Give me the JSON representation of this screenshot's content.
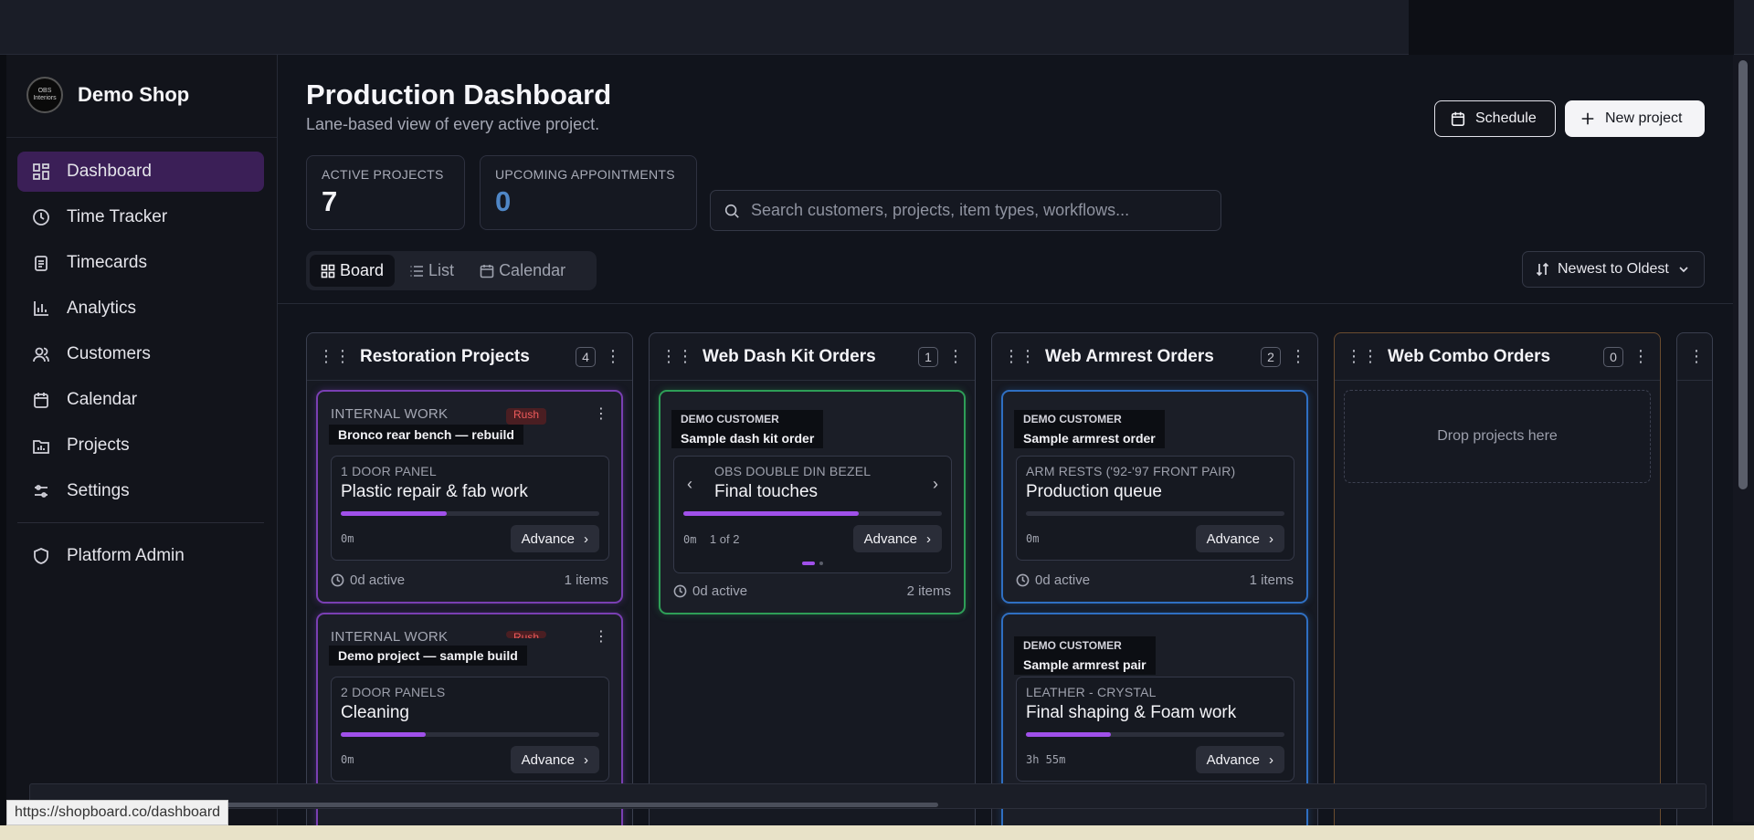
{
  "app": {
    "name": "Demo Shop",
    "logo_text": "OBS Interiors"
  },
  "sidebar": {
    "items": [
      {
        "label": "Dashboard",
        "icon": "dashboard-icon",
        "active": true
      },
      {
        "label": "Time Tracker",
        "icon": "clock-icon"
      },
      {
        "label": "Timecards",
        "icon": "clipboard-icon"
      },
      {
        "label": "Analytics",
        "icon": "bar-chart-icon"
      },
      {
        "label": "Customers",
        "icon": "users-icon"
      },
      {
        "label": "Calendar",
        "icon": "calendar-icon"
      },
      {
        "label": "Projects",
        "icon": "folder-chart-icon"
      },
      {
        "label": "Settings",
        "icon": "sliders-icon"
      }
    ],
    "admin": {
      "label": "Platform Admin",
      "icon": "shield-icon"
    }
  },
  "header": {
    "title": "Production Dashboard",
    "subtitle": "Lane-based view of every active project.",
    "schedule_label": "Schedule",
    "new_project_label": "New project"
  },
  "stats": {
    "active_label": "ACTIVE PROJECTS",
    "active_value": "7",
    "appointments_label": "UPCOMING APPOINTMENTS",
    "appointments_value": "0"
  },
  "search": {
    "placeholder": "Search customers, projects, item types, workflows..."
  },
  "views": {
    "board": "Board",
    "list": "List",
    "calendar": "Calendar",
    "active": "Board"
  },
  "sort": {
    "label": "Newest to Oldest"
  },
  "lanes": [
    {
      "title": "Restoration Projects",
      "count": "4",
      "cards": [
        {
          "category": "INTERNAL WORK",
          "rush": "Rush",
          "tooltip_title": "Bronco rear bench — rebuild",
          "step_category": "1 DOOR PANEL",
          "step_name": "Plastic repair & fab work",
          "progress": 0.41,
          "time": "0m",
          "advance": "Advance",
          "active": "0d active",
          "items": "1 items"
        },
        {
          "category": "INTERNAL WORK",
          "rush": "Rush",
          "tooltip_title": "Demo project — sample build",
          "step_category": "2 DOOR PANELS",
          "step_name": "Cleaning",
          "progress": 0.33,
          "time": "0m",
          "advance": "Advance"
        }
      ]
    },
    {
      "title": "Web Dash Kit Orders",
      "count": "1",
      "cards": [
        {
          "tooltip_customer": "DEMO CUSTOMER",
          "tooltip_title": "Sample dash kit order",
          "step_category": "OBS DOUBLE DIN BEZEL",
          "step_name": "Final touches",
          "progress": 0.68,
          "time": "0m",
          "pager": "1 of 2",
          "advance": "Advance",
          "active": "0d active",
          "items": "2 items"
        }
      ]
    },
    {
      "title": "Web Armrest Orders",
      "count": "2",
      "cards": [
        {
          "tooltip_customer": "DEMO CUSTOMER",
          "tooltip_title": "Sample armrest order",
          "step_category": "ARM RESTS ('92-'97 FRONT PAIR)",
          "step_name": "Production queue",
          "progress": 0,
          "time": "0m",
          "advance": "Advance",
          "active": "0d active",
          "items": "1 items"
        },
        {
          "tooltip_customer": "DEMO CUSTOMER",
          "tooltip_title": "Sample armrest pair",
          "step_category": "LEATHER - CRYSTAL",
          "step_name": "Final shaping & Foam work",
          "progress": 0.33,
          "time": "3h 55m",
          "advance": "Advance"
        }
      ]
    },
    {
      "title": "Web Combo Orders",
      "count": "0",
      "empty": "Drop projects here"
    }
  ],
  "status_url": "https://shopboard.co/dashboard",
  "colors": {
    "accent": "#a050ea",
    "active_nav": "#3b1f57",
    "stat_blue": "#4f86c6"
  }
}
